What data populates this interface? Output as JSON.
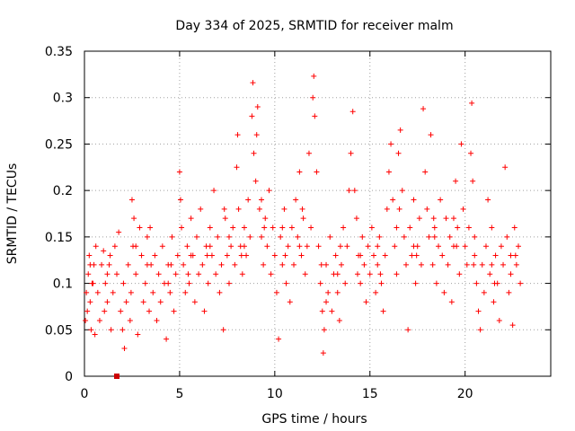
{
  "chart_data": {
    "type": "scatter",
    "title": "Day 334 of 2025, SRMTID for receiver malm",
    "xlabel": "GPS time / hours",
    "ylabel": "SRMTID / TECUs",
    "xlim": [
      0,
      24.5
    ],
    "ylim": [
      0,
      0.35
    ],
    "x_ticks": [
      0,
      5,
      10,
      15,
      20
    ],
    "x_tick_labels": [
      "0",
      "5",
      "10",
      "15",
      "20"
    ],
    "y_ticks": [
      0,
      0.05,
      0.1,
      0.15,
      0.2,
      0.25,
      0.3,
      0.35
    ],
    "y_tick_labels": [
      "0",
      "0.05",
      "0.1",
      "0.15",
      "0.2",
      "0.25",
      "0.3",
      "0.35"
    ],
    "grid": true,
    "marker": "plus",
    "color": "#ff0000",
    "series": [
      {
        "name": "SRMTID",
        "points": [
          [
            0.05,
            0.06
          ],
          [
            0.1,
            0.09
          ],
          [
            0.15,
            0.07
          ],
          [
            0.2,
            0.11
          ],
          [
            0.25,
            0.13
          ],
          [
            0.3,
            0.08
          ],
          [
            0.35,
            0.05
          ],
          [
            0.4,
            0.1
          ],
          [
            0.5,
            0.12
          ],
          [
            0.55,
            0.045
          ],
          [
            0.6,
            0.14
          ],
          [
            0.7,
            0.09
          ],
          [
            0.8,
            0.06
          ],
          [
            0.9,
            0.12
          ],
          [
            1.0,
            0.135
          ],
          [
            1.05,
            0.07
          ],
          [
            1.1,
            0.1
          ],
          [
            1.2,
            0.08
          ],
          [
            1.3,
            0.12
          ],
          [
            1.4,
            0.05
          ],
          [
            1.5,
            0.09
          ],
          [
            1.6,
            0.14
          ],
          [
            1.7,
            0.11
          ],
          [
            1.8,
            0.155
          ],
          [
            1.9,
            0.07
          ],
          [
            2.0,
            0.05
          ],
          [
            2.05,
            0.1
          ],
          [
            2.1,
            0.03
          ],
          [
            2.2,
            0.08
          ],
          [
            2.3,
            0.12
          ],
          [
            2.4,
            0.06
          ],
          [
            2.5,
            0.19
          ],
          [
            2.55,
            0.14
          ],
          [
            2.6,
            0.17
          ],
          [
            2.7,
            0.11
          ],
          [
            2.8,
            0.045
          ],
          [
            2.9,
            0.16
          ],
          [
            3.0,
            0.13
          ],
          [
            3.1,
            0.08
          ],
          [
            3.2,
            0.1
          ],
          [
            3.3,
            0.15
          ],
          [
            3.4,
            0.07
          ],
          [
            3.5,
            0.12
          ],
          [
            3.6,
            0.09
          ],
          [
            3.7,
            0.13
          ],
          [
            3.8,
            0.06
          ],
          [
            3.9,
            0.11
          ],
          [
            4.0,
            0.08
          ],
          [
            4.1,
            0.14
          ],
          [
            4.2,
            0.1
          ],
          [
            4.3,
            0.04
          ],
          [
            4.4,
            0.12
          ],
          [
            4.5,
            0.09
          ],
          [
            4.6,
            0.15
          ],
          [
            4.7,
            0.07
          ],
          [
            4.8,
            0.11
          ],
          [
            4.9,
            0.13
          ],
          [
            5.0,
            0.22
          ],
          [
            5.05,
            0.19
          ],
          [
            5.1,
            0.16
          ],
          [
            5.2,
            0.12
          ],
          [
            5.3,
            0.09
          ],
          [
            5.4,
            0.14
          ],
          [
            5.5,
            0.1
          ],
          [
            5.6,
            0.17
          ],
          [
            5.7,
            0.13
          ],
          [
            5.8,
            0.08
          ],
          [
            5.9,
            0.15
          ],
          [
            6.0,
            0.11
          ],
          [
            6.1,
            0.18
          ],
          [
            6.2,
            0.12
          ],
          [
            6.3,
            0.07
          ],
          [
            6.4,
            0.14
          ],
          [
            6.5,
            0.1
          ],
          [
            6.6,
            0.16
          ],
          [
            6.7,
            0.13
          ],
          [
            6.8,
            0.2
          ],
          [
            6.9,
            0.11
          ],
          [
            7.0,
            0.15
          ],
          [
            7.1,
            0.09
          ],
          [
            7.2,
            0.12
          ],
          [
            7.3,
            0.05
          ],
          [
            7.4,
            0.17
          ],
          [
            7.5,
            0.13
          ],
          [
            7.6,
            0.1
          ],
          [
            7.7,
            0.14
          ],
          [
            7.8,
            0.16
          ],
          [
            7.9,
            0.12
          ],
          [
            8.0,
            0.225
          ],
          [
            8.05,
            0.26
          ],
          [
            8.1,
            0.18
          ],
          [
            8.2,
            0.14
          ],
          [
            8.3,
            0.11
          ],
          [
            8.4,
            0.16
          ],
          [
            8.5,
            0.13
          ],
          [
            8.6,
            0.19
          ],
          [
            8.7,
            0.15
          ],
          [
            8.8,
            0.28
          ],
          [
            8.85,
            0.316
          ],
          [
            8.9,
            0.24
          ],
          [
            9.0,
            0.21
          ],
          [
            9.05,
            0.26
          ],
          [
            9.1,
            0.29
          ],
          [
            9.2,
            0.18
          ],
          [
            9.3,
            0.15
          ],
          [
            9.4,
            0.12
          ],
          [
            9.5,
            0.17
          ],
          [
            9.6,
            0.14
          ],
          [
            9.7,
            0.2
          ],
          [
            9.8,
            0.11
          ],
          [
            9.9,
            0.16
          ],
          [
            10.0,
            0.13
          ],
          [
            10.1,
            0.09
          ],
          [
            10.2,
            0.04
          ],
          [
            10.3,
            0.15
          ],
          [
            10.4,
            0.12
          ],
          [
            10.5,
            0.18
          ],
          [
            10.6,
            0.1
          ],
          [
            10.7,
            0.14
          ],
          [
            10.8,
            0.08
          ],
          [
            10.9,
            0.16
          ],
          [
            11.0,
            0.12
          ],
          [
            11.1,
            0.19
          ],
          [
            11.2,
            0.15
          ],
          [
            11.3,
            0.22
          ],
          [
            11.4,
            0.13
          ],
          [
            11.5,
            0.17
          ],
          [
            11.6,
            0.11
          ],
          [
            11.7,
            0.14
          ],
          [
            11.8,
            0.24
          ],
          [
            11.9,
            0.16
          ],
          [
            12.0,
            0.3
          ],
          [
            12.05,
            0.323
          ],
          [
            12.1,
            0.28
          ],
          [
            12.2,
            0.22
          ],
          [
            12.3,
            0.14
          ],
          [
            12.4,
            0.1
          ],
          [
            12.5,
            0.07
          ],
          [
            12.55,
            0.025
          ],
          [
            12.6,
            0.05
          ],
          [
            12.7,
            0.12
          ],
          [
            12.8,
            0.09
          ],
          [
            12.9,
            0.15
          ],
          [
            13.0,
            0.07
          ],
          [
            13.1,
            0.11
          ],
          [
            13.2,
            0.13
          ],
          [
            13.3,
            0.09
          ],
          [
            13.4,
            0.06
          ],
          [
            13.5,
            0.12
          ],
          [
            13.6,
            0.16
          ],
          [
            13.7,
            0.1
          ],
          [
            13.8,
            0.14
          ],
          [
            13.9,
            0.2
          ],
          [
            14.0,
            0.24
          ],
          [
            14.1,
            0.285
          ],
          [
            14.2,
            0.2
          ],
          [
            14.3,
            0.17
          ],
          [
            14.4,
            0.13
          ],
          [
            14.5,
            0.1
          ],
          [
            14.6,
            0.15
          ],
          [
            14.7,
            0.12
          ],
          [
            14.8,
            0.08
          ],
          [
            14.9,
            0.14
          ],
          [
            15.0,
            0.11
          ],
          [
            15.1,
            0.16
          ],
          [
            15.2,
            0.13
          ],
          [
            15.3,
            0.09
          ],
          [
            15.4,
            0.12
          ],
          [
            15.5,
            0.15
          ],
          [
            15.6,
            0.1
          ],
          [
            15.7,
            0.07
          ],
          [
            15.8,
            0.13
          ],
          [
            15.9,
            0.18
          ],
          [
            16.0,
            0.22
          ],
          [
            16.1,
            0.25
          ],
          [
            16.2,
            0.19
          ],
          [
            16.3,
            0.14
          ],
          [
            16.4,
            0.11
          ],
          [
            16.5,
            0.24
          ],
          [
            16.6,
            0.265
          ],
          [
            16.7,
            0.2
          ],
          [
            16.8,
            0.15
          ],
          [
            16.9,
            0.12
          ],
          [
            17.0,
            0.05
          ],
          [
            17.1,
            0.16
          ],
          [
            17.2,
            0.13
          ],
          [
            17.3,
            0.19
          ],
          [
            17.4,
            0.1
          ],
          [
            17.5,
            0.14
          ],
          [
            17.6,
            0.17
          ],
          [
            17.7,
            0.12
          ],
          [
            17.8,
            0.288
          ],
          [
            17.9,
            0.22
          ],
          [
            18.0,
            0.18
          ],
          [
            18.1,
            0.15
          ],
          [
            18.2,
            0.26
          ],
          [
            18.3,
            0.12
          ],
          [
            18.4,
            0.16
          ],
          [
            18.5,
            0.1
          ],
          [
            18.6,
            0.14
          ],
          [
            18.7,
            0.19
          ],
          [
            18.8,
            0.13
          ],
          [
            18.9,
            0.09
          ],
          [
            19.0,
            0.17
          ],
          [
            19.1,
            0.12
          ],
          [
            19.2,
            0.15
          ],
          [
            19.3,
            0.08
          ],
          [
            19.4,
            0.14
          ],
          [
            19.5,
            0.21
          ],
          [
            19.6,
            0.16
          ],
          [
            19.7,
            0.11
          ],
          [
            19.8,
            0.25
          ],
          [
            19.9,
            0.18
          ],
          [
            20.0,
            0.14
          ],
          [
            20.1,
            0.12
          ],
          [
            20.2,
            0.16
          ],
          [
            20.3,
            0.24
          ],
          [
            20.35,
            0.294
          ],
          [
            20.4,
            0.21
          ],
          [
            20.5,
            0.15
          ],
          [
            20.6,
            0.1
          ],
          [
            20.7,
            0.07
          ],
          [
            20.8,
            0.05
          ],
          [
            20.9,
            0.12
          ],
          [
            21.0,
            0.09
          ],
          [
            21.1,
            0.14
          ],
          [
            21.2,
            0.19
          ],
          [
            21.3,
            0.11
          ],
          [
            21.4,
            0.16
          ],
          [
            21.5,
            0.08
          ],
          [
            21.6,
            0.13
          ],
          [
            21.7,
            0.1
          ],
          [
            21.8,
            0.06
          ],
          [
            21.9,
            0.14
          ],
          [
            22.0,
            0.12
          ],
          [
            22.1,
            0.225
          ],
          [
            22.2,
            0.15
          ],
          [
            22.3,
            0.09
          ],
          [
            22.4,
            0.13
          ],
          [
            22.5,
            0.055
          ],
          [
            22.6,
            0.16
          ],
          [
            22.7,
            0.12
          ],
          [
            22.8,
            0.14
          ],
          [
            22.9,
            0.1
          ],
          [
            0.3,
            0.12
          ],
          [
            1.2,
            0.11
          ],
          [
            2.7,
            0.14
          ],
          [
            3.3,
            0.12
          ],
          [
            4.4,
            0.1
          ],
          [
            5.6,
            0.13
          ],
          [
            6.6,
            0.14
          ],
          [
            7.6,
            0.15
          ],
          [
            8.4,
            0.14
          ],
          [
            9.3,
            0.19
          ],
          [
            10.4,
            0.16
          ],
          [
            11.3,
            0.14
          ],
          [
            12.7,
            0.08
          ],
          [
            13.3,
            0.11
          ],
          [
            14.5,
            0.13
          ],
          [
            15.4,
            0.14
          ],
          [
            16.4,
            0.16
          ],
          [
            17.3,
            0.14
          ],
          [
            18.4,
            0.15
          ],
          [
            19.4,
            0.17
          ],
          [
            20.5,
            0.13
          ],
          [
            21.4,
            0.12
          ],
          [
            22.4,
            0.11
          ],
          [
            0.45,
            0.1
          ],
          [
            1.35,
            0.13
          ],
          [
            2.45,
            0.09
          ],
          [
            3.45,
            0.16
          ],
          [
            4.55,
            0.12
          ],
          [
            5.45,
            0.11
          ],
          [
            6.45,
            0.13
          ],
          [
            7.35,
            0.18
          ],
          [
            8.25,
            0.13
          ],
          [
            9.45,
            0.16
          ],
          [
            10.55,
            0.13
          ],
          [
            11.45,
            0.18
          ],
          [
            12.45,
            0.12
          ],
          [
            13.45,
            0.14
          ],
          [
            14.35,
            0.11
          ],
          [
            15.55,
            0.11
          ],
          [
            16.55,
            0.18
          ],
          [
            17.45,
            0.13
          ],
          [
            18.35,
            0.17
          ],
          [
            19.55,
            0.14
          ],
          [
            20.45,
            0.12
          ],
          [
            21.55,
            0.1
          ],
          [
            22.65,
            0.13
          ]
        ]
      }
    ],
    "outlier_marker": {
      "x": 1.7,
      "y": 0.0
    }
  }
}
